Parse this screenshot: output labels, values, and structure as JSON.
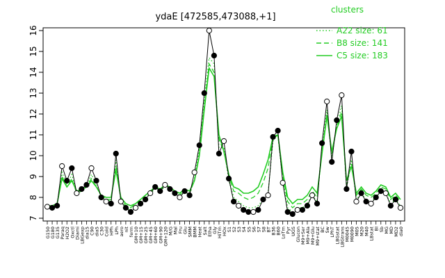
{
  "chart_data": {
    "type": "line",
    "title": "ydaE [472585,473088,+1]",
    "ylim": [
      7,
      16
    ],
    "yticks": [
      7,
      8,
      9,
      10,
      11,
      12,
      13,
      14,
      15,
      16
    ],
    "categories": [
      "G150",
      "G180",
      "G135",
      "Paraq",
      "H2O2",
      "Oxctl",
      "Diami",
      "LBGexp",
      "dia15",
      "C90",
      "dia5",
      "C30",
      "Cold",
      "HPh",
      "LPh",
      "aero",
      "nit",
      "ferm",
      "GM+10",
      "GM+15",
      "GM+25",
      "GM+45",
      "GM+60",
      "GM+90",
      "GM+120",
      "M/G",
      "Mal",
      "Fru",
      "Glu",
      "SMM",
      "BMM",
      "Heat",
      "Salt",
      "Etha",
      "Gly",
      "HiTm",
      "HOx",
      "S1",
      "S2",
      "S3",
      "S4",
      "S5",
      "S6",
      "S7",
      "S8",
      "BT",
      "B36",
      "B60",
      "LoTm",
      "Pyr",
      "UGS",
      "Glucon",
      "M9+Ser",
      "M9+Ala",
      "M9+Glu",
      "M9+stat",
      "BC",
      "Sw",
      "LPhT",
      "LBGstat",
      "LBGtrans",
      "M0045",
      "M0090",
      "M05",
      "M20",
      "M40",
      "LBstat",
      "BI",
      "Sb",
      "MG",
      "MD",
      "MD2",
      "dia0"
    ],
    "points": [
      {
        "label": "G150",
        "y": 7.55
      },
      {
        "label": "G180",
        "y": 7.5
      },
      {
        "label": "G135",
        "y": 7.6
      },
      {
        "label": "Paraq",
        "y": 9.5
      },
      {
        "label": "H2O2",
        "y": 8.8
      },
      {
        "label": "Oxctl",
        "y": 9.4
      },
      {
        "label": "Diami",
        "y": 8.2
      },
      {
        "label": "LBGexp",
        "y": 8.4
      },
      {
        "label": "dia15",
        "y": 8.6
      },
      {
        "label": "C90",
        "y": 9.4
      },
      {
        "label": "dia5",
        "y": 8.8
      },
      {
        "label": "C30",
        "y": 8.0
      },
      {
        "label": "Cold",
        "y": 7.8
      },
      {
        "label": "HPh",
        "y": 7.7
      },
      {
        "label": "LPh",
        "y": 10.1
      },
      {
        "label": "aero",
        "y": 7.8
      },
      {
        "label": "nit",
        "y": 7.5
      },
      {
        "label": "ferm",
        "y": 7.3
      },
      {
        "label": "GM+10",
        "y": 7.5
      },
      {
        "label": "GM+15",
        "y": 7.7
      },
      {
        "label": "GM+25",
        "y": 7.9
      },
      {
        "label": "GM+45",
        "y": 8.2
      },
      {
        "label": "GM+60",
        "y": 8.5
      },
      {
        "label": "GM+90",
        "y": 8.3
      },
      {
        "label": "GM+120",
        "y": 8.6
      },
      {
        "label": "M/G",
        "y": 8.4
      },
      {
        "label": "Mal",
        "y": 8.2
      },
      {
        "label": "Fru",
        "y": 8.0
      },
      {
        "label": "Glu",
        "y": 8.3
      },
      {
        "label": "SMM",
        "y": 8.1
      },
      {
        "label": "BMM",
        "y": 9.2
      },
      {
        "label": "Heat",
        "y": 10.5
      },
      {
        "label": "Salt",
        "y": 13.0
      },
      {
        "label": "Etha",
        "y": 16.0
      },
      {
        "label": "Gly",
        "y": 14.8
      },
      {
        "label": "HiTm",
        "y": 10.1
      },
      {
        "label": "HOx",
        "y": 10.7
      },
      {
        "label": "S1",
        "y": 8.9
      },
      {
        "label": "S2",
        "y": 7.8
      },
      {
        "label": "S3",
        "y": 7.6
      },
      {
        "label": "S4",
        "y": 7.4
      },
      {
        "label": "S5",
        "y": 7.3
      },
      {
        "label": "S6",
        "y": 7.3
      },
      {
        "label": "S7",
        "y": 7.4
      },
      {
        "label": "S8",
        "y": 7.9
      },
      {
        "label": "BT",
        "y": 8.1
      },
      {
        "label": "B36",
        "y": 10.9
      },
      {
        "label": "B60",
        "y": 11.2
      },
      {
        "label": "LoTm",
        "y": 8.7
      },
      {
        "label": "Pyr",
        "y": 7.3
      },
      {
        "label": "UGS",
        "y": 7.2
      },
      {
        "label": "Glucon",
        "y": 7.4
      },
      {
        "label": "M9+Ser",
        "y": 7.4
      },
      {
        "label": "M9+Ala",
        "y": 7.6
      },
      {
        "label": "M9+Glu",
        "y": 8.1
      },
      {
        "label": "M9+stat",
        "y": 7.7
      },
      {
        "label": "BC",
        "y": 10.6
      },
      {
        "label": "Sw",
        "y": 12.6
      },
      {
        "label": "LPhT",
        "y": 9.7
      },
      {
        "label": "LBGstat",
        "y": 11.7
      },
      {
        "label": "LBGtrans",
        "y": 12.9
      },
      {
        "label": "M0045",
        "y": 8.4
      },
      {
        "label": "M0090",
        "y": 10.2
      },
      {
        "label": "M05",
        "y": 7.8
      },
      {
        "label": "M20",
        "y": 8.2
      },
      {
        "label": "M40",
        "y": 7.8
      },
      {
        "label": "LBstat",
        "y": 7.7
      },
      {
        "label": "BI",
        "y": 8.0
      },
      {
        "label": "Sb",
        "y": 8.3
      },
      {
        "label": "MG",
        "y": 8.2
      },
      {
        "label": "MD",
        "y": 7.6
      },
      {
        "label": "MD2",
        "y": 7.9
      },
      {
        "label": "dia0",
        "y": 7.5
      }
    ],
    "series": [
      {
        "name": "A22 size: 61",
        "style": "dotted",
        "color": "#22cc22",
        "values": [
          7.6,
          7.5,
          7.6,
          9.2,
          8.6,
          9.1,
          8.2,
          8.4,
          8.5,
          9.1,
          8.6,
          8.0,
          7.9,
          7.8,
          9.8,
          7.8,
          7.5,
          7.4,
          7.6,
          7.8,
          8.0,
          8.2,
          8.4,
          8.3,
          8.5,
          8.4,
          8.2,
          8.0,
          8.3,
          8.1,
          8.9,
          10.3,
          12.7,
          14.7,
          14.4,
          10.4,
          10.4,
          8.8,
          8.0,
          7.8,
          7.6,
          7.5,
          7.5,
          7.6,
          7.9,
          8.2,
          10.7,
          11.0,
          8.8,
          7.5,
          7.3,
          7.5,
          7.5,
          7.7,
          8.1,
          7.8,
          10.4,
          12.2,
          9.9,
          11.5,
          12.4,
          8.4,
          9.8,
          7.9,
          8.2,
          7.9,
          7.8,
          8.0,
          8.3,
          8.2,
          7.7,
          7.9,
          7.6
        ]
      },
      {
        "name": "B8 size: 141",
        "style": "dashed",
        "color": "#22cc22",
        "values": [
          7.6,
          7.6,
          7.7,
          9.0,
          8.5,
          8.9,
          8.2,
          8.3,
          8.5,
          8.9,
          8.5,
          8.1,
          7.9,
          7.9,
          9.5,
          7.9,
          7.6,
          7.5,
          7.7,
          7.9,
          8.1,
          8.3,
          8.5,
          8.4,
          8.6,
          8.5,
          8.3,
          8.1,
          8.4,
          8.2,
          8.8,
          10.1,
          12.4,
          14.4,
          14.0,
          10.8,
          10.2,
          9.0,
          8.3,
          8.2,
          8.0,
          7.9,
          8.0,
          8.2,
          8.7,
          9.4,
          10.8,
          11.0,
          9.0,
          7.8,
          7.5,
          7.7,
          7.7,
          7.9,
          8.3,
          8.0,
          10.2,
          12.0,
          10.1,
          11.4,
          12.1,
          8.6,
          9.6,
          8.1,
          8.4,
          8.1,
          8.0,
          8.2,
          8.5,
          8.4,
          7.9,
          8.1,
          7.8
        ]
      },
      {
        "name": "C5 size: 183",
        "style": "solid",
        "color": "#22cc22",
        "values": [
          7.6,
          7.6,
          7.7,
          8.9,
          8.5,
          8.8,
          8.3,
          8.4,
          8.5,
          8.8,
          8.5,
          8.1,
          8.0,
          8.0,
          9.3,
          8.0,
          7.7,
          7.6,
          7.7,
          7.9,
          8.1,
          8.3,
          8.5,
          8.4,
          8.6,
          8.5,
          8.3,
          8.2,
          8.4,
          8.3,
          8.8,
          10.0,
          12.2,
          14.2,
          13.8,
          11.0,
          10.2,
          9.1,
          8.5,
          8.4,
          8.2,
          8.2,
          8.3,
          8.5,
          9.1,
          9.8,
          10.9,
          11.0,
          9.2,
          8.0,
          7.7,
          7.9,
          7.9,
          8.1,
          8.5,
          8.2,
          10.1,
          11.9,
          10.2,
          11.3,
          11.9,
          8.8,
          9.5,
          8.2,
          8.5,
          8.2,
          8.1,
          8.3,
          8.6,
          8.5,
          8.0,
          8.2,
          7.9
        ]
      }
    ],
    "legend": {
      "title": "clusters",
      "placement": "top-right"
    }
  }
}
